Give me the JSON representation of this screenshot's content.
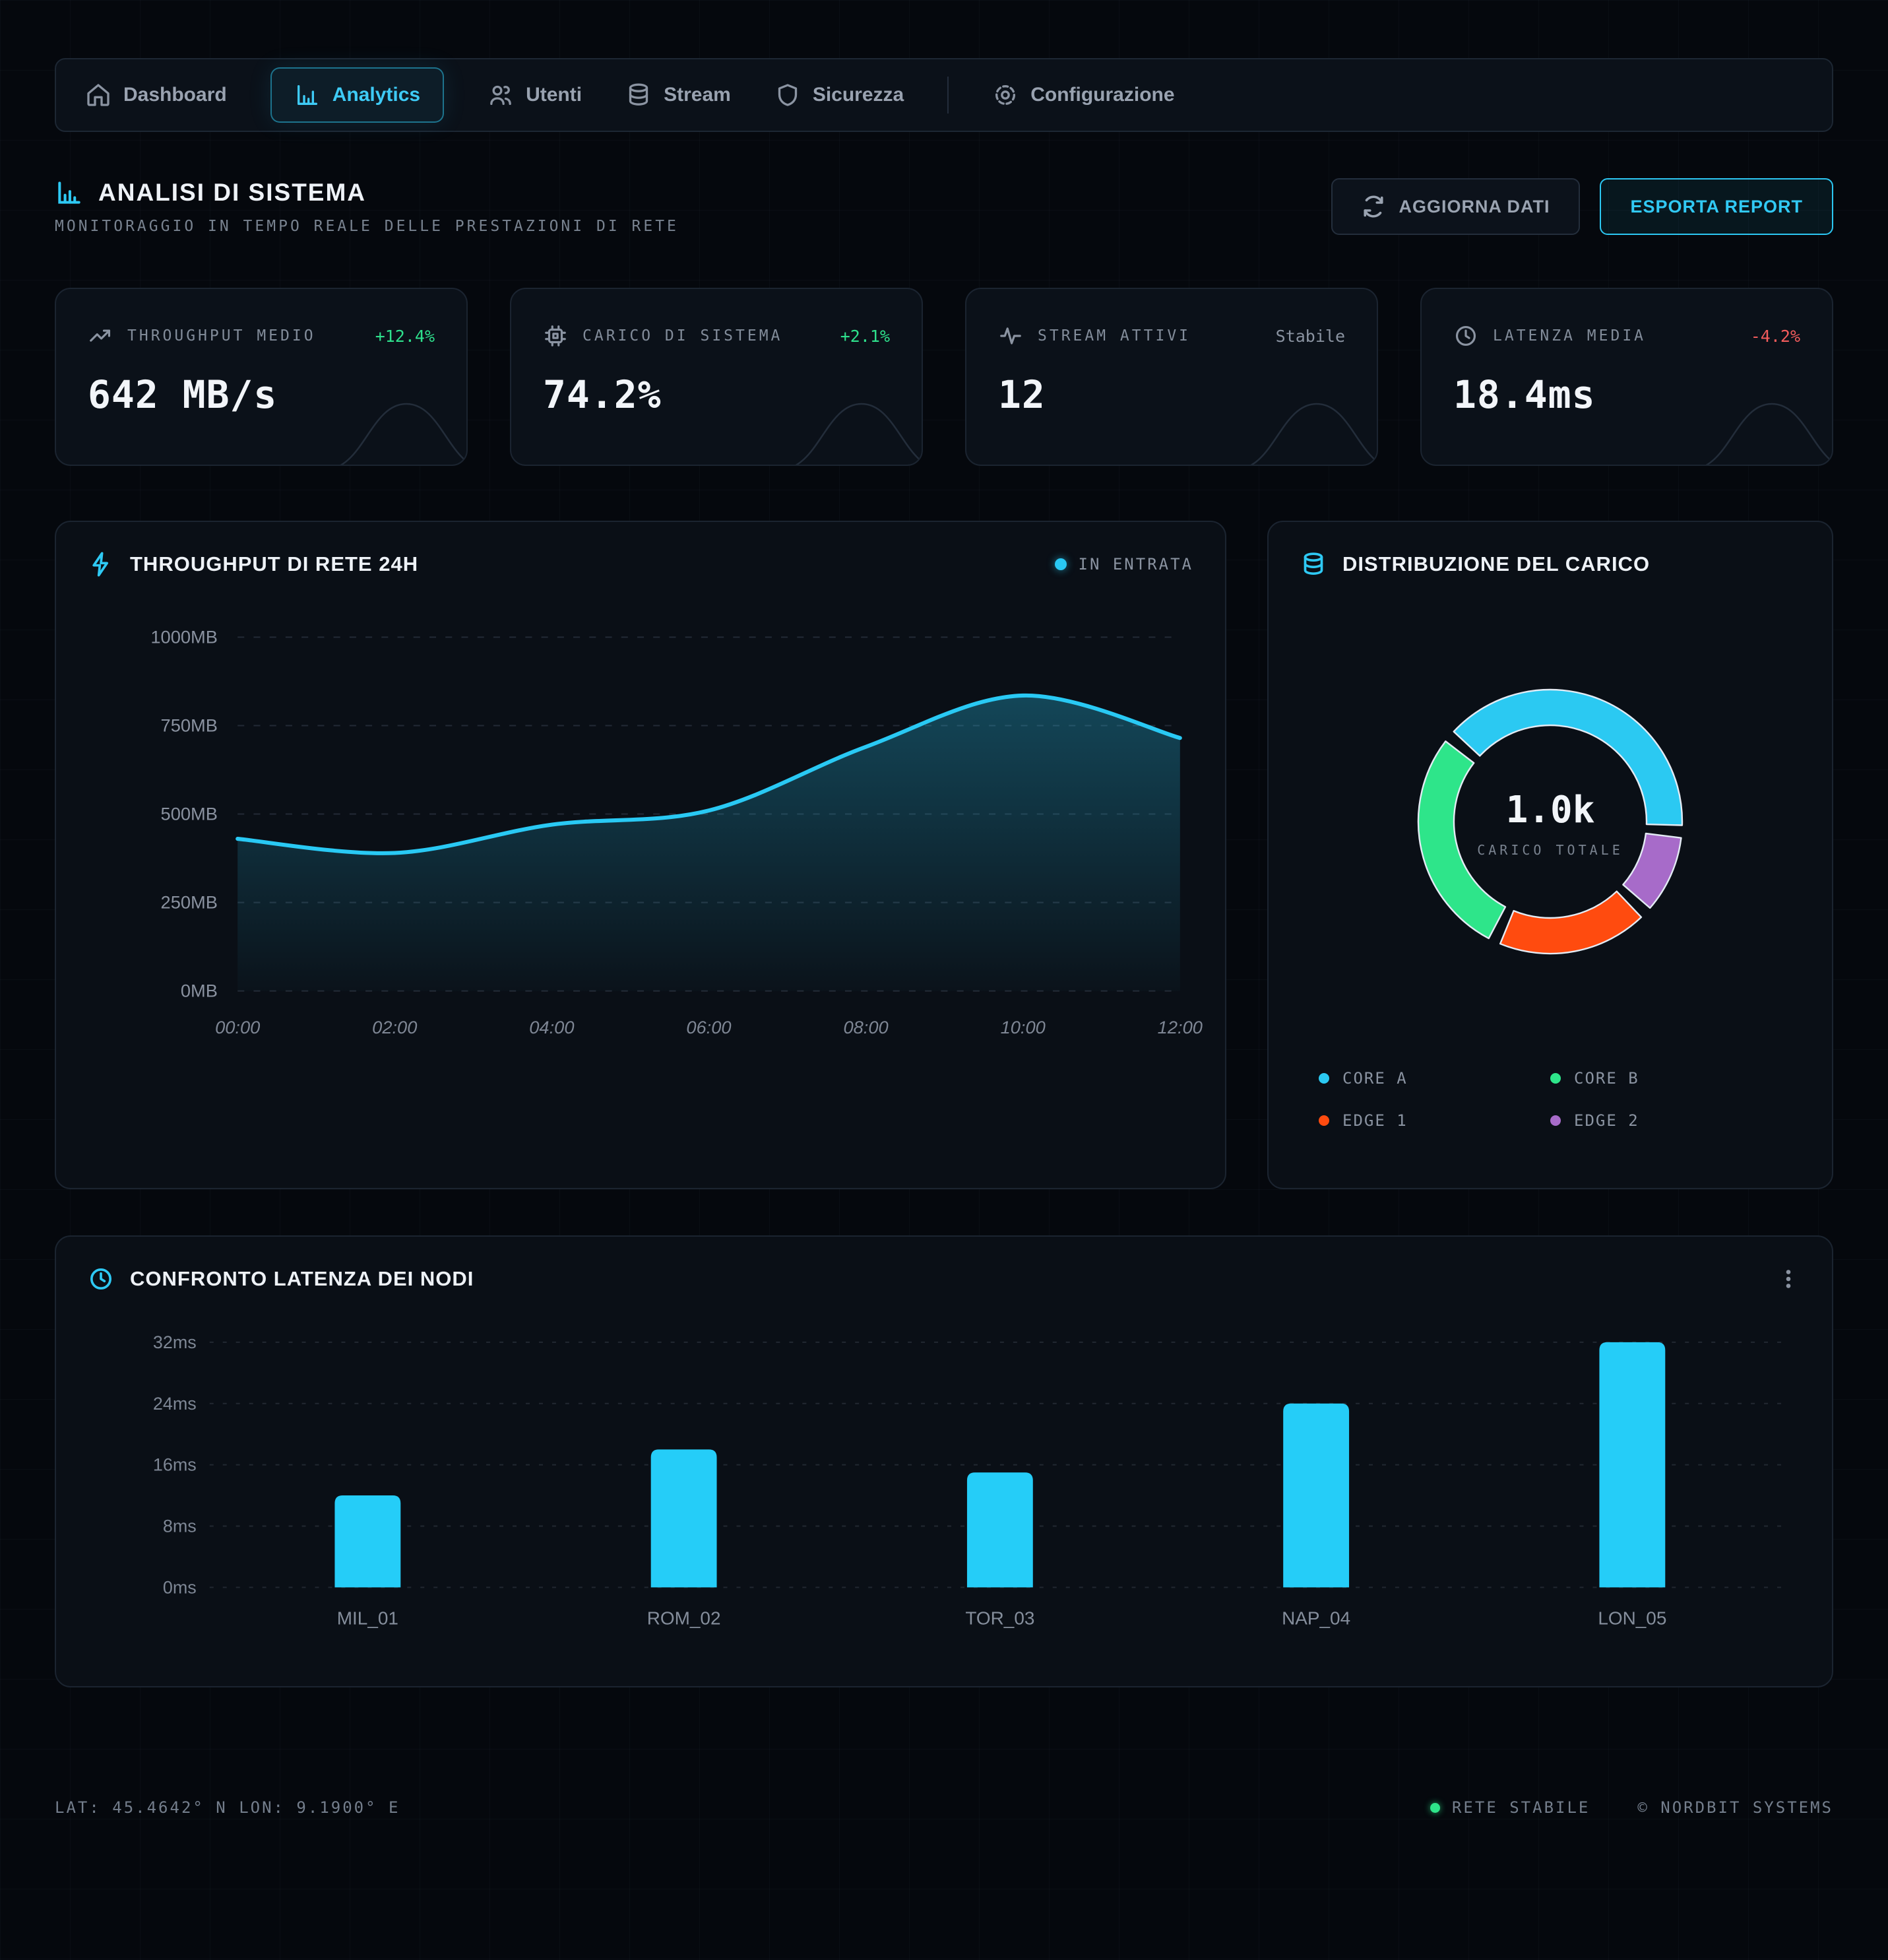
{
  "nav": {
    "items": [
      {
        "label": "Dashboard",
        "icon": "home-icon",
        "active": false
      },
      {
        "label": "Analytics",
        "icon": "bar-chart-icon",
        "active": true
      },
      {
        "label": "Utenti",
        "icon": "users-icon",
        "active": false
      },
      {
        "label": "Stream",
        "icon": "database-icon",
        "active": false
      },
      {
        "label": "Sicurezza",
        "icon": "shield-icon",
        "active": false
      },
      {
        "label": "Configurazione",
        "icon": "gear-icon",
        "active": false
      }
    ]
  },
  "header": {
    "title": "ANALISI DI SISTEMA",
    "subtitle": "MONITORAGGIO IN TEMPO REALE DELLE PRESTAZIONI DI RETE",
    "refresh_label": "AGGIORNA DATI",
    "export_label": "ESPORTA REPORT"
  },
  "stats": [
    {
      "label": "THROUGHPUT MEDIO",
      "value": "642 MB/s",
      "delta": "+12.4%",
      "delta_color": "#2ee08c",
      "icon": "trending-up-icon"
    },
    {
      "label": "CARICO DI SISTEMA",
      "value": "74.2%",
      "delta": "+2.1%",
      "delta_color": "#2ee08c",
      "icon": "cpu-icon"
    },
    {
      "label": "STREAM ATTIVI",
      "value": "12",
      "delta": "Stabile",
      "delta_color": "#8a93a1",
      "icon": "activity-icon"
    },
    {
      "label": "LATENZA MEDIA",
      "value": "18.4ms",
      "delta": "-4.2%",
      "delta_color": "#f25c5c",
      "icon": "clock-icon"
    }
  ],
  "chart_data": [
    {
      "id": "network-throughput",
      "type": "area",
      "title": "THROUGHPUT DI RETE 24H",
      "legend": [
        "IN ENTRATA"
      ],
      "x": [
        "00:00",
        "02:00",
        "04:00",
        "06:00",
        "08:00",
        "10:00",
        "12:00"
      ],
      "values": [
        430,
        390,
        470,
        510,
        690,
        835,
        715
      ],
      "unit": "MB",
      "yticks": [
        0,
        250,
        500,
        750,
        1000
      ],
      "ylim": [
        0,
        1000
      ],
      "line_color": "#29c9f4",
      "grid": "dashed-horizontal"
    },
    {
      "id": "load-distribution",
      "type": "donut",
      "title": "DISTRIBUZIONE DEL CARICO",
      "center_value": "1.0k",
      "center_label": "CARICO TOTALE",
      "segments": [
        {
          "label": "CORE A",
          "value": 410,
          "color": "#2bc9f2"
        },
        {
          "label": "CORE B",
          "value": 295,
          "color": "#2ee58a"
        },
        {
          "label": "EDGE 1",
          "value": 195,
          "color": "#ff4b0f"
        },
        {
          "label": "EDGE 2",
          "value": 100,
          "color": "#a76bc9"
        }
      ],
      "draw_order": [
        0,
        3,
        2,
        1
      ],
      "start_angle_deg": -47,
      "gap_deg": 5.5
    },
    {
      "id": "node-latency",
      "type": "bar",
      "title": "CONFRONTO LATENZA DEI NODI",
      "categories": [
        "MIL_01",
        "ROM_02",
        "TOR_03",
        "NAP_04",
        "LON_05"
      ],
      "values": [
        12,
        18,
        15,
        24,
        32
      ],
      "unit": "ms",
      "yticks": [
        0,
        8,
        16,
        24,
        32
      ],
      "ylim": [
        0,
        32
      ],
      "bar_color": "#25cdf8",
      "grid": "dashed-horizontal"
    }
  ],
  "footer": {
    "coordinates": "LAT: 45.4642° N  LON: 9.1900° E",
    "status": "RETE STABILE",
    "status_color": "#2ee58a",
    "copyright": "© NORDBIT SYSTEMS"
  }
}
